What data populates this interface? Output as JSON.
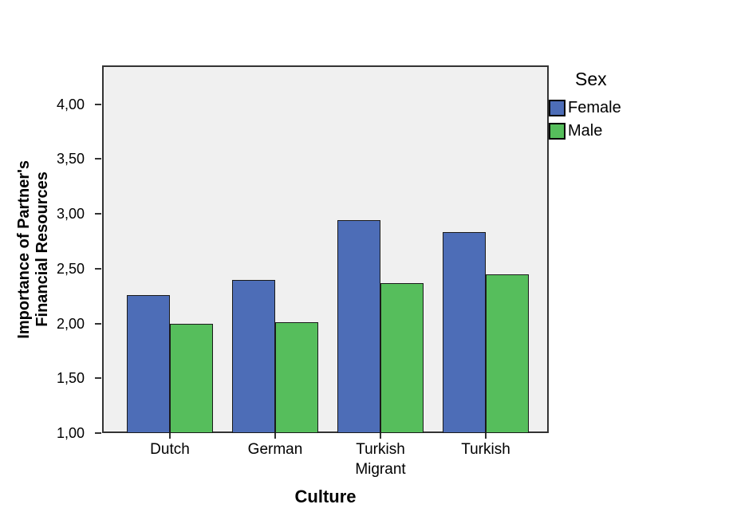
{
  "chart_data": {
    "type": "bar",
    "title": "",
    "xlabel": "Culture",
    "ylabel": "Importance of Partner's Financial Resources",
    "ylabel_lines": [
      "Importance of Partner's",
      "Financial Resources"
    ],
    "categories": [
      "Dutch",
      "German",
      "Turkish\nMigrant",
      "Turkish"
    ],
    "series": [
      {
        "name": "Female",
        "color": "#4D6DB7",
        "values": [
          2.26,
          2.4,
          2.94,
          2.83
        ]
      },
      {
        "name": "Male",
        "color": "#56BE5C",
        "values": [
          2.0,
          2.01,
          2.37,
          2.45
        ]
      }
    ],
    "ylim": [
      1.0,
      4.35
    ],
    "ytick_step": 0.5,
    "yticks": [
      1.0,
      1.5,
      2.0,
      2.5,
      3.0,
      3.5,
      4.0
    ],
    "ytick_labels": [
      "1,00",
      "1,50",
      "2,00",
      "2,50",
      "3,00",
      "3,50",
      "4,00"
    ],
    "decimal_separator": ",",
    "grid": false,
    "legend": {
      "title": "Sex",
      "position": "outside-top-right",
      "entries": [
        "Female",
        "Male"
      ]
    },
    "plot_background": "#F0F0F0",
    "frame_color": "#333333",
    "bar_border_color": "#1a1a1a"
  }
}
